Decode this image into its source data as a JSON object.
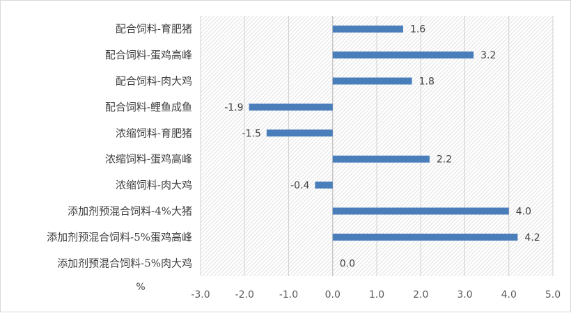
{
  "chart_data": {
    "type": "bar",
    "orientation": "horizontal",
    "categories": [
      "配合饲料-育肥猪",
      "配合饲料-蛋鸡高峰",
      "配合饲料-肉大鸡",
      "配合饲料-鲤鱼成鱼",
      "浓缩饲料-育肥猪",
      "浓缩饲料-蛋鸡高峰",
      "浓缩饲料-肉大鸡",
      "添加剂预混合饲料-4%大猪",
      "添加剂预混合饲料-5%蛋鸡高峰",
      "添加剂预混合饲料-5%肉大鸡"
    ],
    "values": [
      1.6,
      3.2,
      1.8,
      -1.9,
      -1.5,
      2.2,
      -0.4,
      4.0,
      4.2,
      0.0
    ],
    "value_labels": [
      "1.6",
      "3.2",
      "1.8",
      "-1.9",
      "-1.5",
      "2.2",
      "-0.4",
      "4.0",
      "4.2",
      "0.0"
    ],
    "unit_label": "%",
    "xlim": [
      -3.0,
      5.0
    ],
    "xticks": [
      "-3.0",
      "-2.0",
      "-1.0",
      "0.0",
      "1.0",
      "2.0",
      "3.0",
      "4.0",
      "5.0"
    ],
    "grid": true,
    "legend": "none",
    "bar_color": "#4a7ebb",
    "plot_background": "hatched light gray"
  }
}
